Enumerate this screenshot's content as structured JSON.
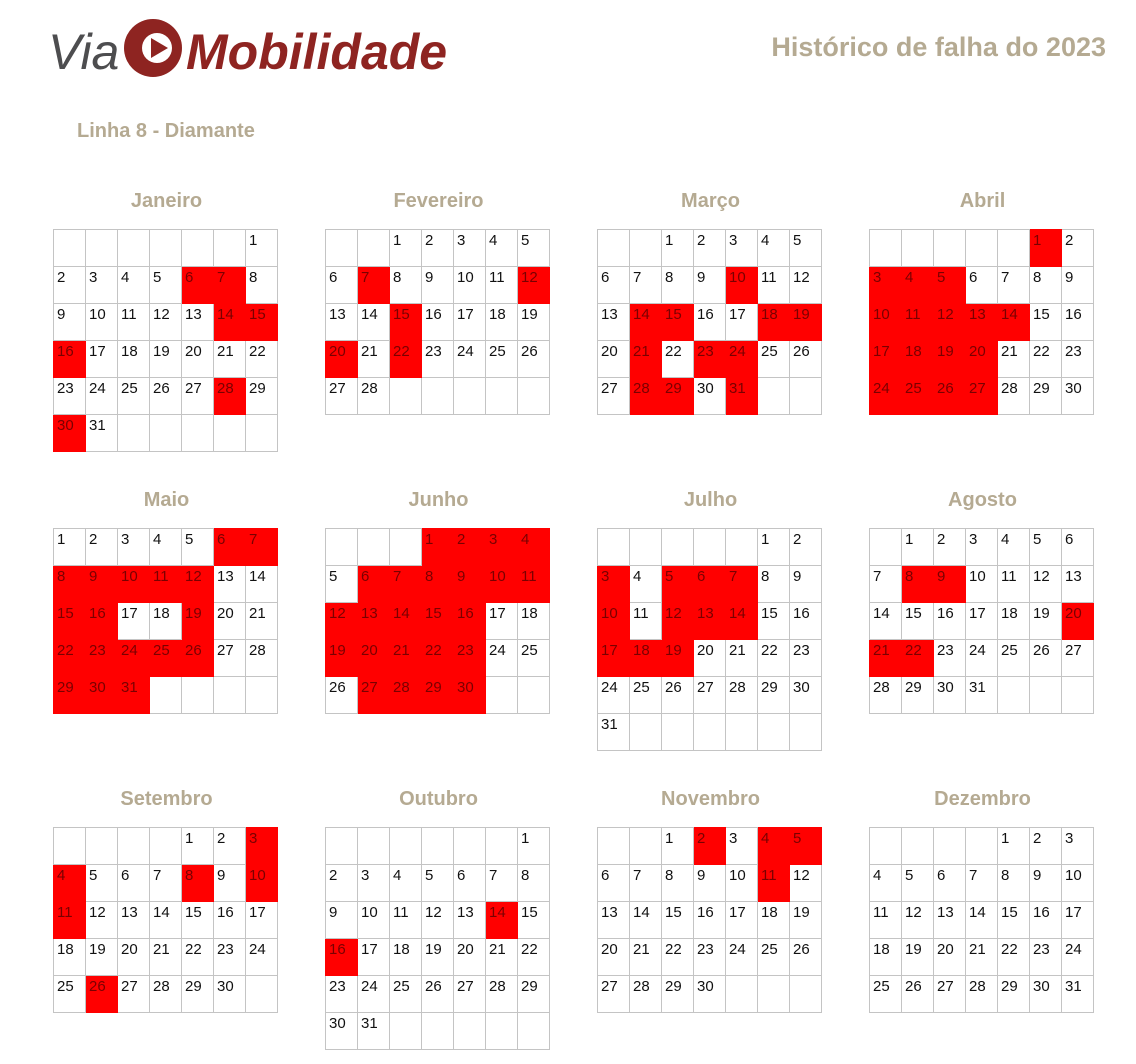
{
  "brand": {
    "logo_text_via": "Via",
    "logo_text_mobilidade": "Mobilidade",
    "logo_colors": {
      "via": "#4d4d4f",
      "mobilidade": "#8e2421"
    }
  },
  "header": {
    "title": "Histórico de falha do 2023"
  },
  "line": {
    "name": "Linha 8 - Diamante"
  },
  "colors": {
    "failure": "#ff0000",
    "heading": "#b5aa92",
    "grid_border": "#c4c4c4"
  },
  "months": [
    {
      "name": "Janeiro",
      "start_weekday": 6,
      "days": 31,
      "failures": [
        6,
        7,
        14,
        15,
        16,
        28,
        30
      ]
    },
    {
      "name": "Fevereiro",
      "start_weekday": 2,
      "days": 28,
      "failures": [
        7,
        12,
        15,
        20,
        22
      ]
    },
    {
      "name": "Março",
      "start_weekday": 2,
      "days": 31,
      "failures": [
        10,
        14,
        15,
        18,
        19,
        21,
        23,
        24,
        28,
        29,
        31
      ]
    },
    {
      "name": "Abril",
      "start_weekday": 5,
      "days": 30,
      "failures": [
        1,
        3,
        4,
        5,
        10,
        11,
        12,
        13,
        14,
        17,
        18,
        19,
        20,
        24,
        25,
        26,
        27
      ]
    },
    {
      "name": "Maio",
      "start_weekday": 0,
      "days": 31,
      "failures": [
        6,
        7,
        8,
        9,
        10,
        11,
        12,
        15,
        16,
        19,
        22,
        23,
        24,
        25,
        26,
        29,
        30,
        31
      ]
    },
    {
      "name": "Junho",
      "start_weekday": 3,
      "days": 30,
      "failures": [
        1,
        2,
        3,
        4,
        6,
        7,
        8,
        9,
        10,
        11,
        12,
        13,
        14,
        15,
        16,
        19,
        20,
        21,
        22,
        23,
        27,
        28,
        29,
        30
      ]
    },
    {
      "name": "Julho",
      "start_weekday": 5,
      "days": 31,
      "failures": [
        3,
        5,
        6,
        7,
        10,
        12,
        13,
        14,
        17,
        18,
        19
      ]
    },
    {
      "name": "Agosto",
      "start_weekday": 1,
      "days": 31,
      "failures": [
        8,
        9,
        20,
        21,
        22
      ]
    },
    {
      "name": "Setembro",
      "start_weekday": 4,
      "days": 30,
      "failures": [
        3,
        4,
        8,
        10,
        11,
        26
      ]
    },
    {
      "name": "Outubro",
      "start_weekday": 6,
      "days": 31,
      "failures": [
        14,
        16
      ]
    },
    {
      "name": "Novembro",
      "start_weekday": 2,
      "days": 30,
      "failures": [
        2,
        4,
        5,
        11
      ]
    },
    {
      "name": "Dezembro",
      "start_weekday": 4,
      "days": 31,
      "failures": []
    }
  ]
}
